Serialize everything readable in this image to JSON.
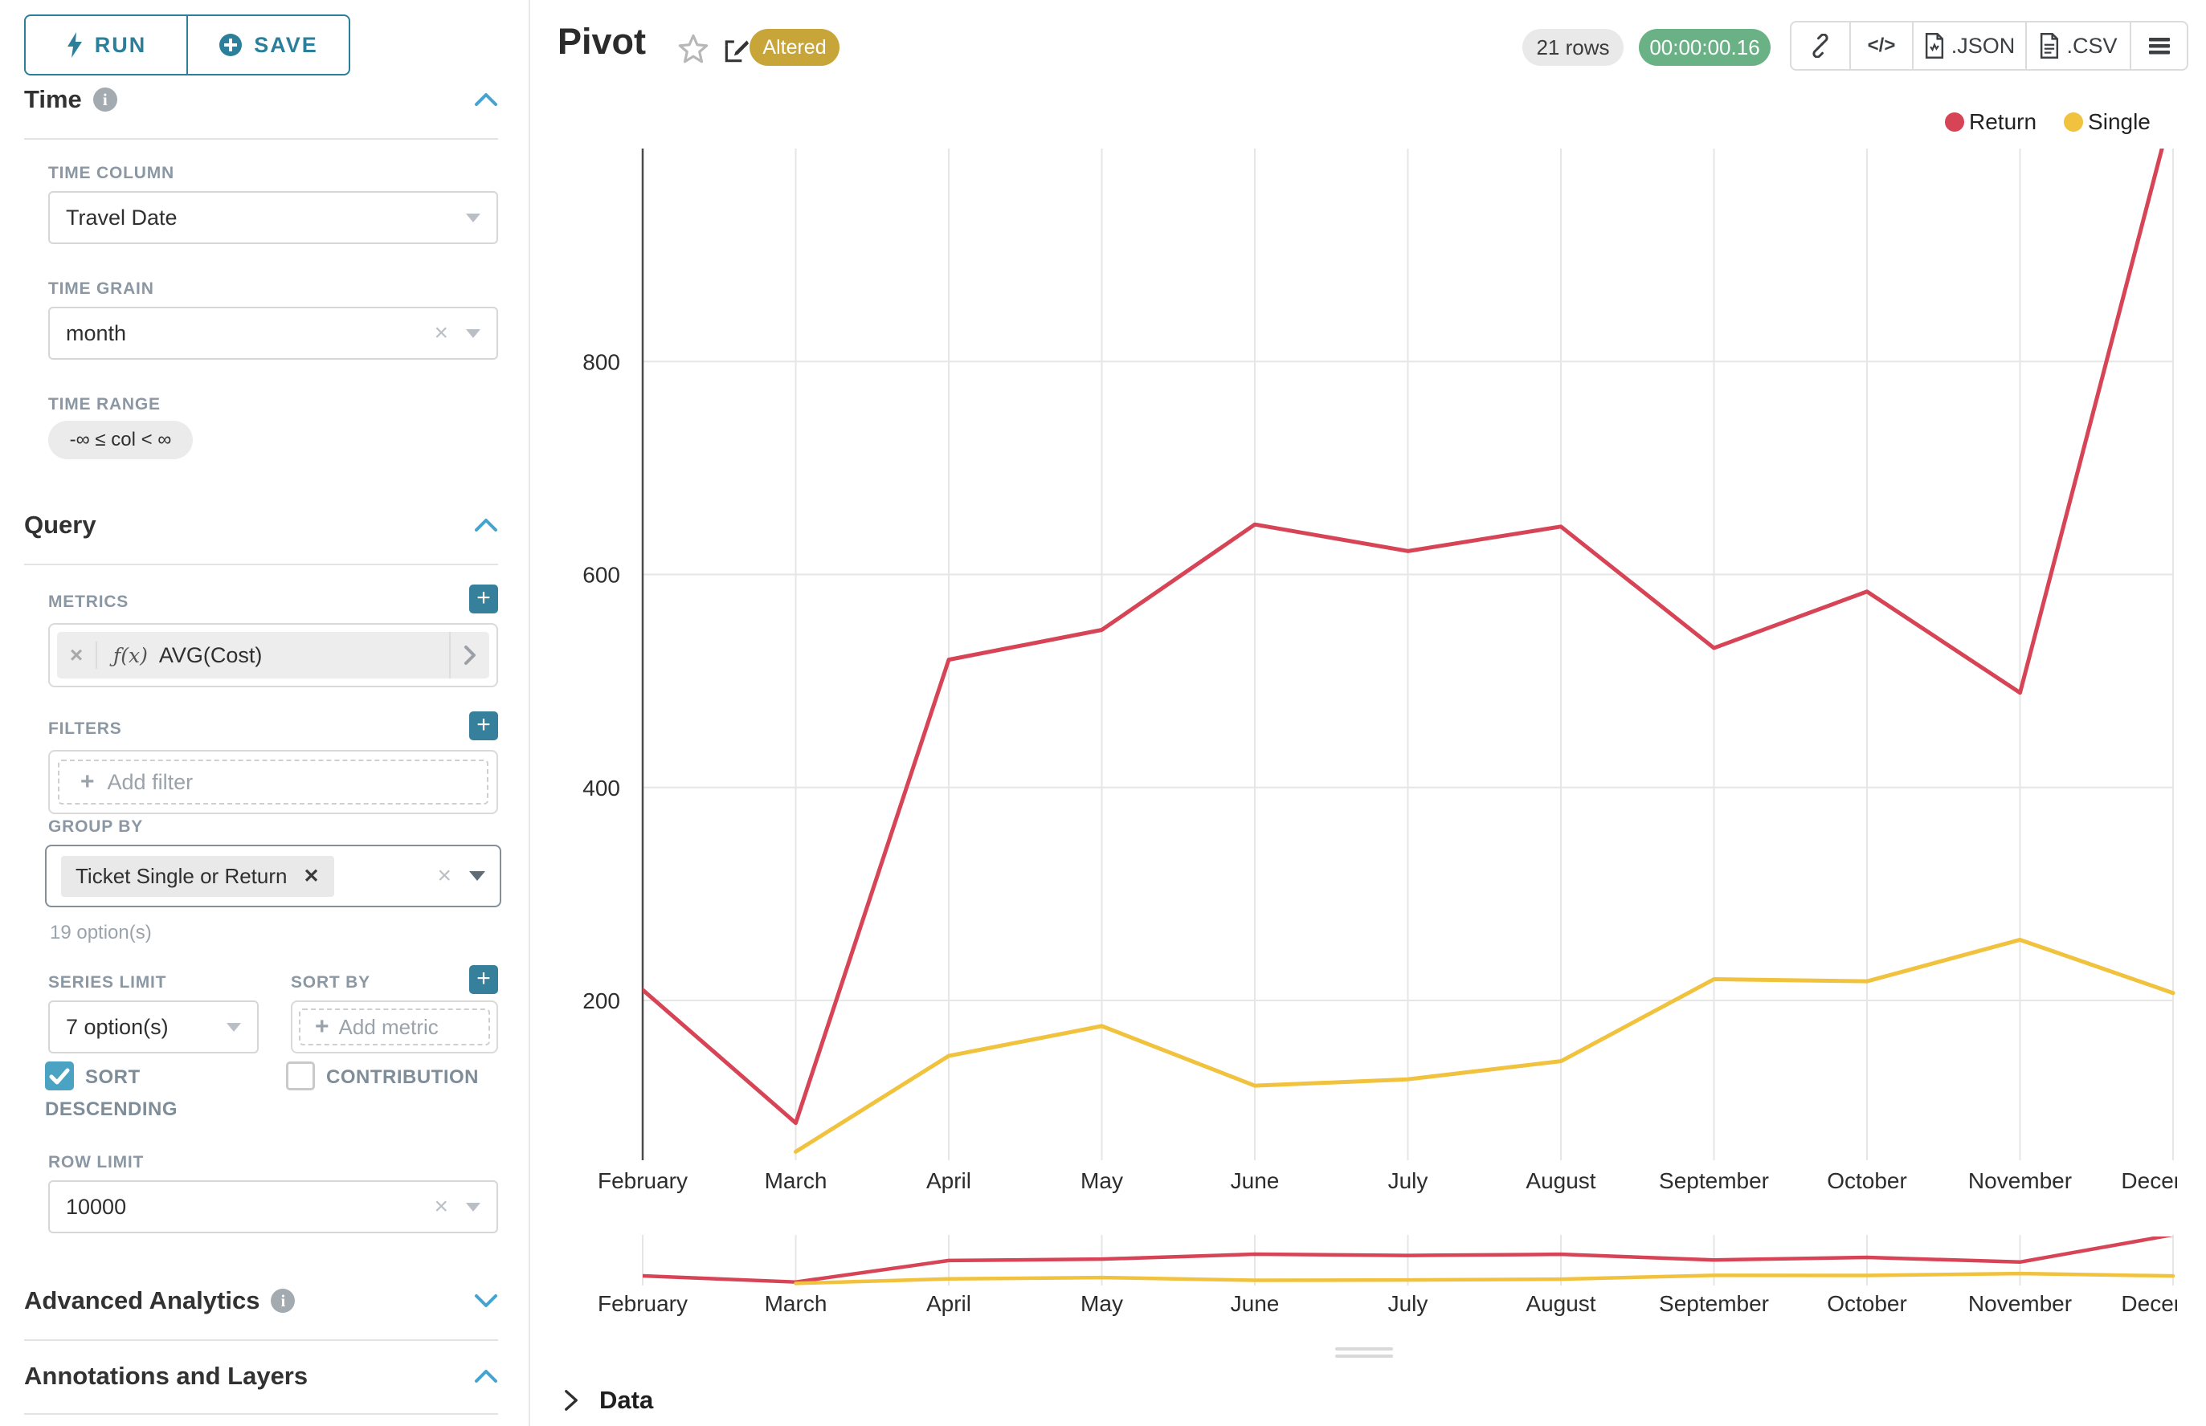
{
  "toolbar": {
    "run_label": "RUN",
    "save_label": "SAVE"
  },
  "sidebar": {
    "time": {
      "title": "Time",
      "column_label": "TIME COLUMN",
      "column_value": "Travel Date",
      "grain_label": "TIME GRAIN",
      "grain_value": "month",
      "range_label": "TIME RANGE",
      "range_value": "-∞ ≤ col < ∞"
    },
    "query": {
      "title": "Query",
      "metrics_label": "METRICS",
      "metric_fx": "ƒ(x)",
      "metric_value": "AVG(Cost)",
      "filters_label": "FILTERS",
      "add_filter_label": "Add filter",
      "group_by_label": "GROUP BY",
      "group_by_value": "Ticket Single or Return",
      "options_hint": "19 option(s)",
      "series_limit_label": "SERIES LIMIT",
      "series_limit_value": "7 option(s)",
      "sort_by_label": "SORT BY",
      "add_metric_label": "Add metric",
      "sort_descending_label": "SORT DESCENDING",
      "contribution_label": "CONTRIBUTION",
      "row_limit_label": "ROW LIMIT",
      "row_limit_value": "10000"
    },
    "advanced_analytics": {
      "title": "Advanced Analytics"
    },
    "annotations": {
      "title": "Annotations and Layers"
    }
  },
  "header": {
    "title": "Pivot",
    "altered_badge": "Altered",
    "rows_badge": "21 rows",
    "timer_badge": "00:00:00.16",
    "code_icon_label": "</>",
    "export_json_label": ".JSON",
    "export_csv_label": ".CSV"
  },
  "chart_data": {
    "type": "line",
    "x": [
      "February",
      "March",
      "April",
      "May",
      "June",
      "July",
      "August",
      "September",
      "October",
      "November",
      "December"
    ],
    "ylim": [
      50,
      1000
    ],
    "yticks": [
      200,
      400,
      600,
      800
    ],
    "grid": true,
    "legend_position": "top-right",
    "series": [
      {
        "name": "Return",
        "color": "#d64456",
        "values": [
          210,
          85,
          520,
          548,
          647,
          622,
          645,
          531,
          584,
          489,
          1040
        ]
      },
      {
        "name": "Single",
        "color": "#f0c23d",
        "values": [
          null,
          58,
          148,
          176,
          120,
          126,
          143,
          220,
          218,
          257,
          207
        ]
      }
    ],
    "mini_ylim": [
      15,
      1005
    ]
  },
  "data_panel": {
    "title": "Data"
  },
  "colors": {
    "accent_teal": "#2b7f9b",
    "control_teal": "#37809b",
    "checkbox_teal": "#4ba3c3",
    "chevron_blue": "#45a3cf",
    "altered_gold": "#c8a539",
    "timer_green": "#6ab286",
    "return_red": "#d64456",
    "single_yellow": "#f0c23d"
  }
}
